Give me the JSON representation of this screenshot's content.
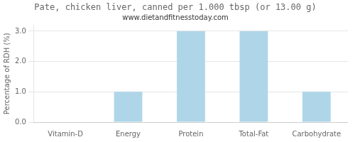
{
  "chart_data": {
    "type": "bar",
    "title": "Pate, chicken liver, canned per 1.000 tbsp (or 13.00 g)",
    "subtitle": "www.dietandfitnesstoday.com",
    "categories": [
      "Vitamin-D",
      "Energy",
      "Protein",
      "Total-Fat",
      "Carbohydrate"
    ],
    "values": [
      0.0,
      1.0,
      3.0,
      3.0,
      1.0
    ],
    "color": "#aed6e8",
    "ylabel": "Percentage of RDH (%)",
    "ylim": [
      0.0,
      3.2
    ],
    "yticks": [
      {
        "value": 0.0,
        "label": "0.0"
      },
      {
        "value": 1.0,
        "label": "1.0"
      },
      {
        "value": 2.0,
        "label": "2.0"
      },
      {
        "value": 3.0,
        "label": "3.0"
      }
    ],
    "grid": true
  }
}
